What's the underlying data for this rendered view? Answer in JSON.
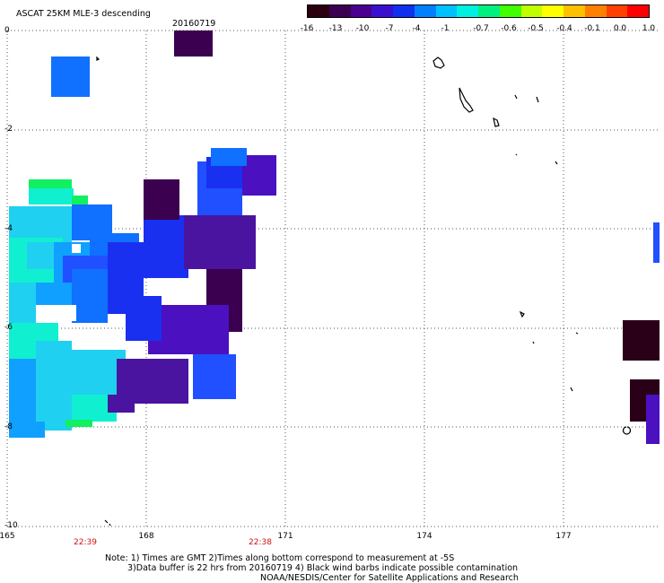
{
  "header": {
    "title": "ASCAT 25KM MLE-3 descending",
    "date": "20160719"
  },
  "colorbar": {
    "ticks": [
      "-16",
      "-13",
      "-10",
      "-7",
      "-4",
      "-1",
      "-0.7",
      "-0.6",
      "-0.5",
      "-0.4",
      "-0.1",
      "0.0",
      "1.0"
    ],
    "colors": [
      "#2a0010",
      "#3b0050",
      "#4a0090",
      "#3a10d0",
      "#1030f0",
      "#0080ff",
      "#00c0ff",
      "#00f0e0",
      "#00f080",
      "#40ff00",
      "#c0ff00",
      "#ffff00",
      "#ffc000",
      "#ff8000",
      "#ff4000",
      "#ff0000"
    ]
  },
  "axes": {
    "lat_labels": [
      "0",
      "-2",
      "-4",
      "-6",
      "-8",
      "-10"
    ],
    "lon_labels": [
      "165",
      "168",
      "171",
      "174",
      "177"
    ]
  },
  "times": [
    "22:39",
    "22:38"
  ],
  "footer": {
    "line1": "Note: 1) Times are GMT 2)Times along bottom correspond to measurement at -5S",
    "line2": "3)Data buffer is 22 hrs from 20160719 4) Black wind barbs indicate possible contamination",
    "line3": "NOAA/NESDIS/Center for Satellite Applications and Research"
  }
}
